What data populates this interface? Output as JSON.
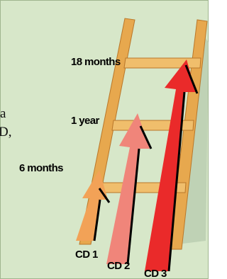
{
  "fragments": [
    "a",
    "D,"
  ],
  "rungs": [
    "18 months",
    "1 year",
    "6 months"
  ],
  "cds": [
    "CD 1",
    "CD 2",
    "CD 3"
  ]
}
